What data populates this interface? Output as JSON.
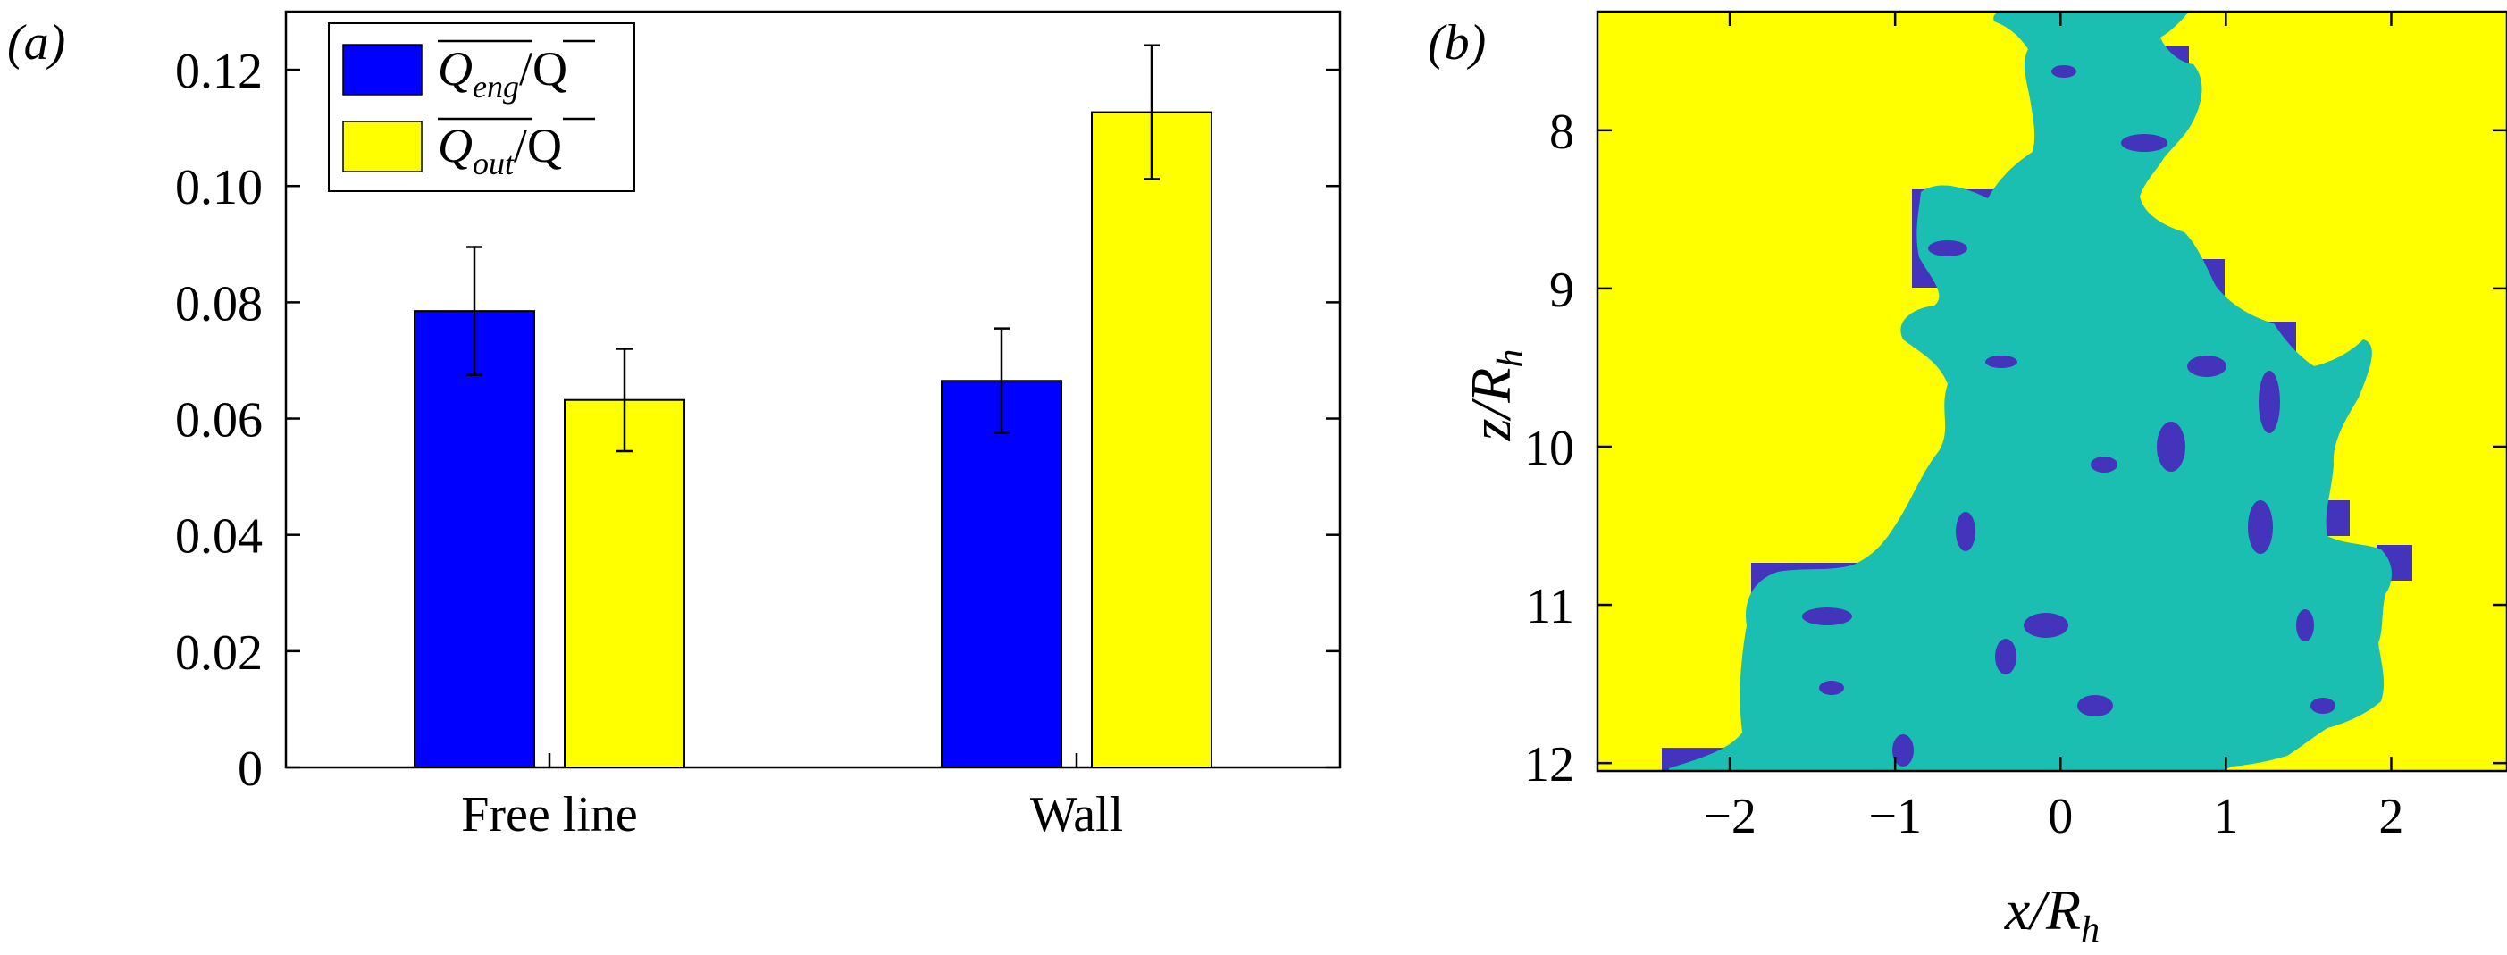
{
  "colors": {
    "blue": "#0000ff",
    "yellow": "#ffff00",
    "teal": "#1abfb2",
    "purple": "#4433bb",
    "black": "#000000"
  },
  "chart_data": [
    {
      "type": "bar",
      "panel_label": "(a)",
      "categories": [
        "Free line",
        "Wall"
      ],
      "ylim": [
        0,
        0.13
      ],
      "yticks": [
        "0",
        "0.02",
        "0.04",
        "0.06",
        "0.08",
        "0.10",
        "0.12"
      ],
      "legend_position": "top-left",
      "series": [
        {
          "name": "Q_eng/Q",
          "legend_main": "Q",
          "legend_sub": "eng",
          "legend_tail": "/Q",
          "color": "#0000ff",
          "values": [
            0.0785,
            0.0665
          ],
          "errors": [
            0.011,
            0.009
          ]
        },
        {
          "name": "Q_out/Q",
          "legend_main": "Q",
          "legend_sub": "out",
          "legend_tail": "/Q",
          "color": "#ffff00",
          "values": [
            0.0632,
            0.1127
          ],
          "errors": [
            0.0088,
            0.0115
          ]
        }
      ]
    },
    {
      "type": "heatmap",
      "panel_label": "(b)",
      "xlim": [
        -2.8,
        2.7
      ],
      "ylim": [
        12.05,
        7.25
      ],
      "xticks": [
        "−2",
        "−1",
        "0",
        "1",
        "2"
      ],
      "yticks": [
        "8",
        "9",
        "10",
        "11",
        "12"
      ],
      "xlabel_main": "x/R",
      "xlabel_sub": "h",
      "ylabel_main": "z/R",
      "ylabel_sub": "h",
      "background_color": "#ffff00",
      "plume_color": "#1abfb2",
      "patch_color": "#4433bb"
    }
  ]
}
